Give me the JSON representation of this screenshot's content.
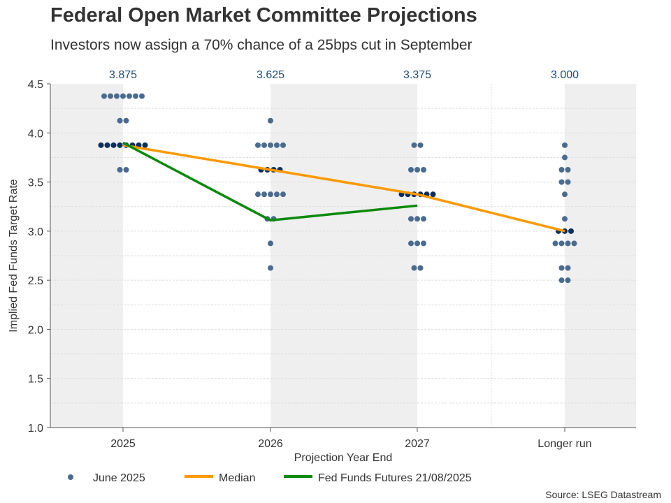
{
  "title": "Federal Open Market Committee Projections",
  "subtitle": "Investors now assign a 70% chance of a 25bps cut in September",
  "source": "Source: LSEG Datastream",
  "chart_data": {
    "type": "scatter",
    "xlabel": "Projection Year End",
    "ylabel": "Implied Fed Funds Target Rate",
    "categories": [
      "2025",
      "2026",
      "2027",
      "Longer run"
    ],
    "ylim": [
      1.0,
      4.5
    ],
    "yticks": [
      "1.0",
      "1.5",
      "2.0",
      "2.5",
      "3.0",
      "3.5",
      "4.0",
      "4.5"
    ],
    "grid": true,
    "legend_position": "bottom",
    "median_labels": [
      "3.875",
      "3.625",
      "3.375",
      "3.000"
    ],
    "colors": {
      "dots": "#4a6b91",
      "median_dots": "#0d2f5c",
      "median": "#ff9900",
      "futures": "#0a8a0a",
      "band": "#efefef",
      "median_label": "#1f4e79"
    },
    "series": [
      {
        "name": "June 2025",
        "kind": "dots",
        "points": [
          [
            {
              "rate": 4.375,
              "count": 7
            },
            {
              "rate": 4.125,
              "count": 2
            },
            {
              "rate": 3.875,
              "count": 8
            },
            {
              "rate": 3.625,
              "count": 2
            }
          ],
          [
            {
              "rate": 4.125,
              "count": 1
            },
            {
              "rate": 3.875,
              "count": 5
            },
            {
              "rate": 3.625,
              "count": 4
            },
            {
              "rate": 3.375,
              "count": 5
            },
            {
              "rate": 3.125,
              "count": 2
            },
            {
              "rate": 2.875,
              "count": 1
            },
            {
              "rate": 2.625,
              "count": 1
            }
          ],
          [
            {
              "rate": 3.875,
              "count": 2
            },
            {
              "rate": 3.625,
              "count": 3
            },
            {
              "rate": 3.375,
              "count": 6
            },
            {
              "rate": 3.125,
              "count": 3
            },
            {
              "rate": 2.875,
              "count": 3
            },
            {
              "rate": 2.625,
              "count": 2
            }
          ],
          [
            {
              "rate": 3.875,
              "count": 1
            },
            {
              "rate": 3.75,
              "count": 1
            },
            {
              "rate": 3.625,
              "count": 2
            },
            {
              "rate": 3.5,
              "count": 2
            },
            {
              "rate": 3.375,
              "count": 1
            },
            {
              "rate": 3.125,
              "count": 1
            },
            {
              "rate": 3.0,
              "count": 3
            },
            {
              "rate": 2.875,
              "count": 4
            },
            {
              "rate": 2.625,
              "count": 2
            },
            {
              "rate": 2.5,
              "count": 2
            }
          ]
        ]
      },
      {
        "name": "Median",
        "kind": "line",
        "values": [
          3.875,
          3.625,
          3.375,
          3.0
        ]
      },
      {
        "name": "Fed Funds Futures 21/08/2025",
        "kind": "line",
        "values": [
          3.9,
          3.11,
          3.26,
          null
        ]
      }
    ]
  }
}
